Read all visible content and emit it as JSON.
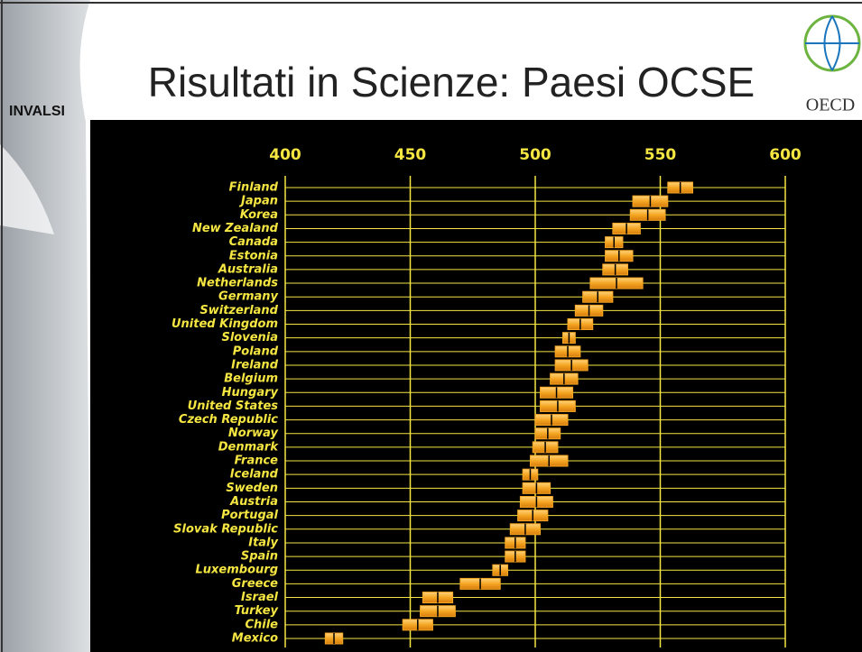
{
  "header": {
    "title": "Risultati in Scienze: Paesi OCSE",
    "brand": "INVALSI",
    "logo": "OECD"
  },
  "chart_data": {
    "type": "range",
    "categories": [
      "Finland",
      "Japan",
      "Korea",
      "New Zealand",
      "Canada",
      "Estonia",
      "Australia",
      "Netherlands",
      "Germany",
      "Switzerland",
      "United Kingdom",
      "Slovenia",
      "Poland",
      "Ireland",
      "Belgium",
      "Hungary",
      "United States",
      "Czech Republic",
      "Norway",
      "Denmark",
      "France",
      "Iceland",
      "Sweden",
      "Austria",
      "Portugal",
      "Slovak Republic",
      "Italy",
      "Spain",
      "Luxembourg",
      "Greece",
      "Israel",
      "Turkey",
      "Chile",
      "Mexico"
    ],
    "low": [
      553,
      539,
      538,
      531,
      528,
      528,
      527,
      522,
      519,
      516,
      513,
      511,
      508,
      508,
      506,
      502,
      502,
      500,
      500,
      499,
      498,
      495,
      495,
      494,
      493,
      490,
      488,
      488,
      483,
      470,
      455,
      454,
      447,
      416
    ],
    "high": [
      563,
      553,
      552,
      542,
      535,
      539,
      537,
      543,
      531,
      527,
      523,
      516,
      518,
      521,
      517,
      515,
      516,
      513,
      510,
      509,
      513,
      501,
      506,
      507,
      505,
      502,
      496,
      496,
      489,
      486,
      467,
      468,
      459,
      423
    ],
    "color": "#f5a623",
    "xlim": [
      400,
      600
    ],
    "xticks": [
      400,
      450,
      500,
      550,
      600
    ],
    "grid": true
  }
}
